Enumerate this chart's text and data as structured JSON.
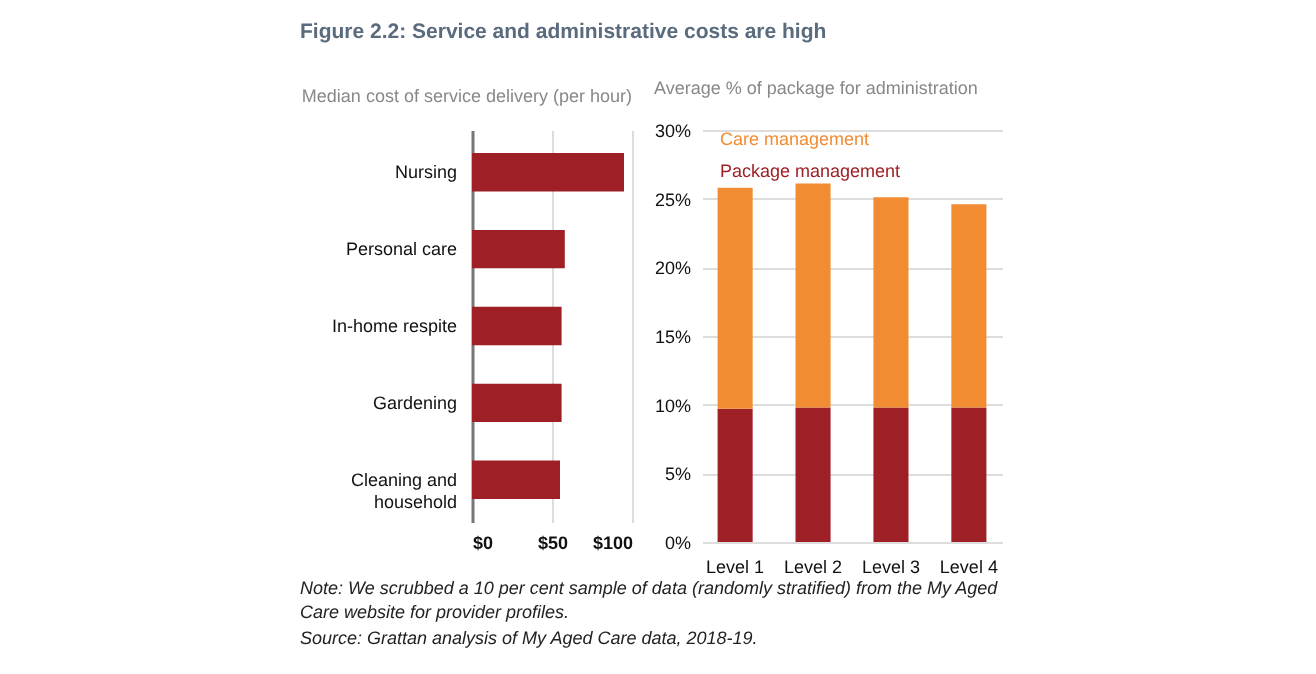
{
  "chart_data": [
    {
      "type": "bar",
      "orientation": "horizontal",
      "title": "Figure 2.2: Service and administrative costs are high",
      "subtitle": "Median cost of service delivery (per hour)",
      "categories": [
        "Nursing",
        "Personal care",
        "In-home respite",
        "Gardening",
        "Cleaning and household"
      ],
      "values": [
        95,
        58,
        56,
        56,
        55
      ],
      "color": "#9e1f25",
      "xlim": [
        0,
        100
      ],
      "xticks": [
        {
          "value": 0,
          "label": "$0"
        },
        {
          "value": 50,
          "label": "$50"
        },
        {
          "value": 100,
          "label": "$100"
        }
      ],
      "grid": "x"
    },
    {
      "type": "bar",
      "stacked": true,
      "subtitle": "Average % of package for administration",
      "categories": [
        "Level 1",
        "Level 2",
        "Level 3",
        "Level 4"
      ],
      "series": [
        {
          "name": "Package management",
          "color": "#9e1f25",
          "values": [
            9.7,
            9.8,
            9.8,
            9.8
          ]
        },
        {
          "name": "Care management",
          "color": "#f28c32",
          "values": [
            16.1,
            16.3,
            15.3,
            14.8
          ]
        }
      ],
      "ylim": [
        0,
        30
      ],
      "yticks": [
        {
          "value": 0,
          "label": "0%"
        },
        {
          "value": 5,
          "label": "5%"
        },
        {
          "value": 10,
          "label": "10%"
        },
        {
          "value": 15,
          "label": "15%"
        },
        {
          "value": 20,
          "label": "20%"
        },
        {
          "value": 25,
          "label": "25%"
        },
        {
          "value": 30,
          "label": "30%"
        }
      ],
      "grid": "y",
      "legend": "top left",
      "annotations": [
        "Note: We scrubbed a 10 per cent sample of data (randomly stratified) from the My Aged Care website for provider profiles.",
        "Source: Grattan analysis of My Aged Care data, 2018-19."
      ]
    }
  ]
}
